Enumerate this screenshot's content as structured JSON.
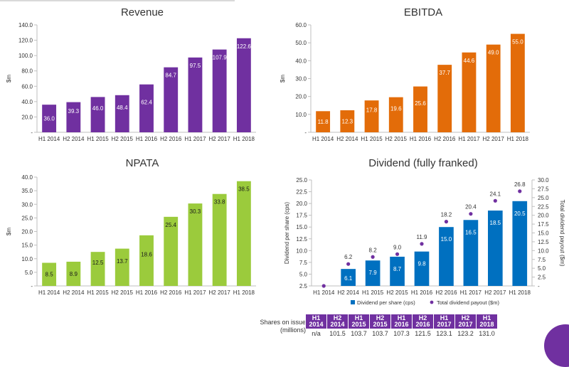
{
  "colors": {
    "revenue": "#7030a0",
    "ebitda": "#e36c09",
    "npata": "#9bcb3c",
    "dividend": "#0070c0",
    "payout": "#7030a0",
    "axis": "#bfbfbf",
    "text": "#333333"
  },
  "chart_data": [
    {
      "type": "bar",
      "title": "Revenue",
      "ylabel": "$m",
      "categories": [
        "H1 2014",
        "H2 2014",
        "H1 2015",
        "H2 2015",
        "H1 2016",
        "H2 2016",
        "H1 2017",
        "H2 2017",
        "H1 2018"
      ],
      "values": [
        36.0,
        39.3,
        46.0,
        48.4,
        62.4,
        84.7,
        97.5,
        107.9,
        122.6
      ],
      "labels": [
        "36.0",
        "39.3",
        "46.0",
        "48.4",
        "62.4",
        "84.7",
        "97.5",
        "107.9",
        "122.6"
      ],
      "ylim": [
        0,
        140
      ],
      "yticks": [
        "-",
        "20.0",
        "40.0",
        "60.0",
        "80.0",
        "100.0",
        "120.0",
        "140.0"
      ],
      "color_key": "revenue",
      "grid": false
    },
    {
      "type": "bar",
      "title": "EBITDA",
      "ylabel": "$m",
      "categories": [
        "H1 2014",
        "H2 2014",
        "H1 2015",
        "H2 2015",
        "H1 2016",
        "H2 2016",
        "H1 2017",
        "H2 2017",
        "H1 2018"
      ],
      "values": [
        11.8,
        12.3,
        17.8,
        19.6,
        25.6,
        37.7,
        44.6,
        49.0,
        55.0
      ],
      "labels": [
        "11.8",
        "12.3",
        "17.8",
        "19.6",
        "25.6",
        "37.7",
        "44.6",
        "49.0",
        "55.0"
      ],
      "ylim": [
        0,
        60
      ],
      "yticks": [
        "-",
        "10.0",
        "20.0",
        "30.0",
        "40.0",
        "50.0",
        "60.0"
      ],
      "color_key": "ebitda",
      "grid": false
    },
    {
      "type": "bar",
      "title": "NPATA",
      "ylabel": "$m",
      "categories": [
        "H1 2014",
        "H2 2014",
        "H1 2015",
        "H2 2015",
        "H1 2016",
        "H2 2016",
        "H1 2017",
        "H2 2017",
        "H1 2018"
      ],
      "values": [
        8.5,
        8.9,
        12.5,
        13.7,
        18.6,
        25.4,
        30.3,
        33.8,
        38.5
      ],
      "labels": [
        "8.5",
        "8.9",
        "12.5",
        "13.7",
        "18.6",
        "25.4",
        "30.3",
        "33.8",
        "38.5"
      ],
      "ylim": [
        0,
        40
      ],
      "yticks": [
        "-",
        "5.0",
        "10.0",
        "15.0",
        "20.0",
        "25.0",
        "30.0",
        "35.0",
        "40.0"
      ],
      "color_key": "npata",
      "grid": false
    },
    {
      "type": "bar",
      "title": "Dividend (fully franked)",
      "ylabel": "Dividend per share (cps)",
      "y2label": "Total dividend payout ($m)",
      "categories": [
        "H1 2014",
        "H2 2014",
        "H1 2015",
        "H2 2015",
        "H1 2016",
        "H2 2016",
        "H1 2017",
        "H2 2017",
        "H1 2018"
      ],
      "ylim": [
        2.5,
        25.0
      ],
      "yticks": [
        "2.5",
        "5.0",
        "7.5",
        "10.0",
        "12.5",
        "15.0",
        "17.5",
        "20.0",
        "22.5",
        "25.0"
      ],
      "y2lim": [
        0,
        30.0
      ],
      "y2ticks": [
        "-",
        "2.5",
        "5.0",
        "7.5",
        "10.0",
        "12.5",
        "15.0",
        "17.5",
        "20.0",
        "22.5",
        "25.0",
        "27.5",
        "30.0"
      ],
      "series": [
        {
          "name": "Dividend per share (cps)",
          "kind": "bar",
          "axis": "left",
          "values": [
            null,
            6.1,
            7.9,
            8.7,
            9.8,
            15.0,
            16.5,
            18.5,
            20.5
          ],
          "labels": [
            "",
            "6.1",
            "7.9",
            "8.7",
            "9.8",
            "15.0",
            "16.5",
            "18.5",
            "20.5"
          ],
          "color_key": "dividend"
        },
        {
          "name": "Total dividend payout ($m)",
          "kind": "scatter",
          "axis": "right",
          "values": [
            0,
            6.2,
            8.2,
            9.0,
            11.9,
            18.2,
            20.4,
            24.1,
            26.8
          ],
          "labels": [
            "",
            "6.2",
            "8.2",
            "9.0",
            "11.9",
            "18.2",
            "20.4",
            "24.1",
            "26.8"
          ],
          "color_key": "payout"
        }
      ],
      "legend": "bottom",
      "grid": false
    }
  ],
  "shares_table": {
    "row_label": "Shares on issue (millions)",
    "columns": [
      "H1 2014",
      "H2 2014",
      "H1 2015",
      "H2 2015",
      "H1 2016",
      "H2 2016",
      "H1 2017",
      "H2 2017",
      "H1 2018"
    ],
    "values": [
      "n/a",
      "101.5",
      "103.7",
      "103.7",
      "107.3",
      "121.5",
      "123.1",
      "123.2",
      "131.0"
    ]
  }
}
